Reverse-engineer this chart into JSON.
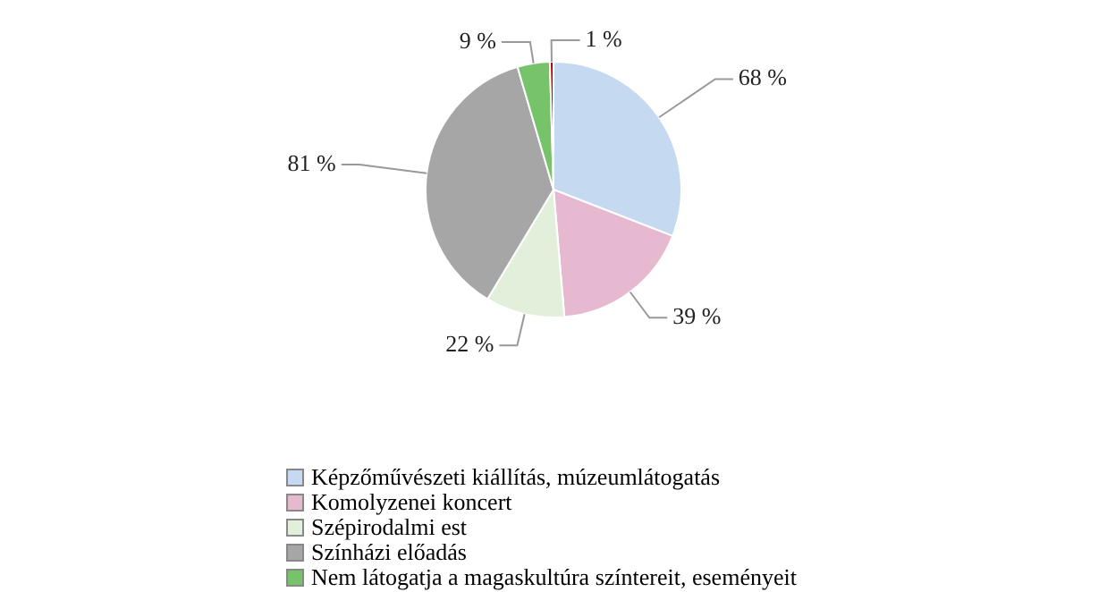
{
  "chart_data": {
    "type": "pie",
    "categories": [
      "Képzőművészeti kiállítás, múzeumlátogatás",
      "Komolyzenei koncert",
      "Szépirodalmi est",
      "Színházi előadás",
      "Nem látogatja a magaskultúra színtereit, eseményeit",
      null
    ],
    "values": [
      68,
      39,
      22,
      81,
      9,
      1
    ],
    "colors": [
      "#c5d9f1",
      "#e6b9d0",
      "#e2efda",
      "#a6a6a6",
      "#77c36a",
      "#c00000"
    ],
    "value_labels": [
      "68 %",
      "39 %",
      "22 %",
      "81 %",
      "9 %",
      "1 %"
    ],
    "legend": "bottom"
  }
}
